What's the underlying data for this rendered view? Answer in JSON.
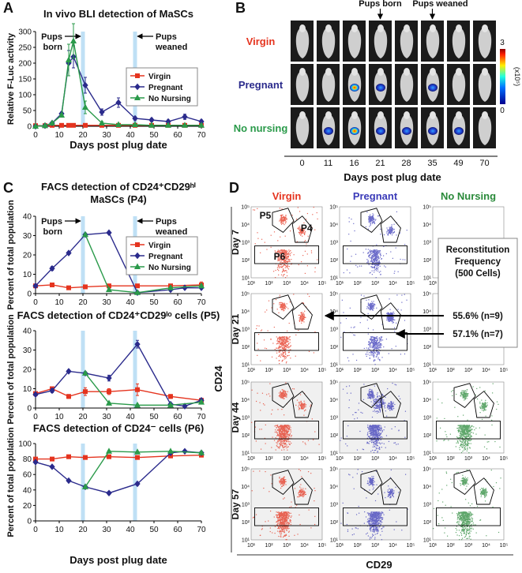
{
  "panel_labels": [
    "A",
    "B",
    "C",
    "D"
  ],
  "chart_data": [
    {
      "type": "line",
      "title": "In vivo BLI detection of MaSCs",
      "xlabel": "Days post plug date",
      "ylabel": "Relative F-Luc activity",
      "xlim": [
        0,
        70
      ],
      "xticks": [
        0,
        10,
        20,
        30,
        40,
        50,
        60,
        70
      ],
      "ylim": [
        0,
        300
      ],
      "yticks": [
        0,
        50,
        100,
        150,
        200,
        250,
        300
      ],
      "highlights": [
        20,
        42
      ],
      "annotations": [
        [
          "Pups",
          "born"
        ],
        [
          "Pups",
          "weaned"
        ]
      ],
      "legend": "right",
      "series": [
        {
          "name": "Virgin",
          "color": "#e5341f",
          "marker": "square",
          "x": [
            0,
            4,
            7,
            11,
            14,
            16,
            21,
            28,
            35,
            42,
            49,
            56,
            63,
            70
          ],
          "values": [
            2,
            2,
            3,
            3,
            3,
            3,
            3,
            3,
            3,
            3,
            3,
            3,
            3,
            3
          ]
        },
        {
          "name": "Pregnant",
          "color": "#2b2b8c",
          "marker": "diamond",
          "x": [
            0,
            4,
            7,
            11,
            14,
            16,
            21,
            28,
            35,
            42,
            49,
            56,
            63,
            70
          ],
          "values": [
            0,
            2,
            10,
            40,
            200,
            220,
            130,
            45,
            75,
            25,
            20,
            15,
            30,
            15
          ],
          "errors": [
            0,
            1,
            3,
            5,
            40,
            35,
            25,
            10,
            15,
            5,
            5,
            5,
            8,
            5
          ]
        },
        {
          "name": "No Nursing",
          "color": "#2a9a4a",
          "marker": "triangle",
          "x": [
            0,
            4,
            7,
            11,
            14,
            16,
            21,
            28,
            35,
            42,
            49,
            56,
            63,
            70
          ],
          "values": [
            0,
            2,
            10,
            35,
            210,
            270,
            60,
            10,
            5,
            5,
            3,
            3,
            3,
            3
          ],
          "errors": [
            0,
            1,
            3,
            5,
            50,
            55,
            20,
            5,
            3,
            2,
            2,
            2,
            2,
            2
          ]
        }
      ]
    },
    {
      "type": "line",
      "title": [
        "FACS detection of CD24⁺CD29ʰⁱ",
        "MaSCs (P4)"
      ],
      "ylabel": "Percent of total population",
      "xlim": [
        0,
        70
      ],
      "xticks": [
        0,
        10,
        20,
        30,
        40,
        50,
        60,
        70
      ],
      "ylim": [
        0,
        40
      ],
      "yticks": [
        0,
        10,
        20,
        30,
        40
      ],
      "highlights": [
        20,
        42
      ],
      "annotations": [
        [
          "Pups",
          "born"
        ],
        [
          "Pups",
          "weaned"
        ]
      ],
      "legend": "right",
      "series": [
        {
          "name": "Virgin",
          "color": "#e5341f",
          "marker": "square",
          "x": [
            0,
            7,
            14,
            21,
            31,
            43,
            57,
            70
          ],
          "values": [
            4,
            4.5,
            3,
            3.5,
            4,
            4,
            4,
            4.5
          ],
          "errors": [
            0.5,
            0.5,
            0.5,
            0.5,
            0.5,
            0.5,
            0.8,
            1.5
          ]
        },
        {
          "name": "Pregnant",
          "color": "#2b2b8c",
          "marker": "diamond",
          "x": [
            0,
            7,
            14,
            21,
            31,
            43,
            57,
            63,
            70
          ],
          "values": [
            4,
            13,
            21,
            30.5,
            31.5,
            0.5,
            2,
            3,
            3
          ],
          "errors": [
            0.5,
            1,
            0.7,
            0.8,
            0.5,
            0.5,
            0.5,
            0.5,
            0.5
          ]
        },
        {
          "name": "No Nursing",
          "color": "#2a9a4a",
          "marker": "triangle",
          "x": [
            21,
            31,
            43,
            57,
            70
          ],
          "values": [
            30.5,
            2,
            0.5,
            3,
            4
          ],
          "errors": [
            0.5,
            0.5,
            0.3,
            0.5,
            0.5
          ]
        }
      ]
    },
    {
      "type": "line",
      "title": "FACS detection of CD24⁺CD29ˡᵒ cells (P5)",
      "ylabel": "Percent of total population",
      "xlim": [
        0,
        70
      ],
      "xticks": [
        0,
        10,
        20,
        30,
        40,
        50,
        60,
        70
      ],
      "ylim": [
        0,
        40
      ],
      "yticks": [
        0,
        10,
        20,
        30,
        40
      ],
      "highlights": [
        20,
        42
      ],
      "series": [
        {
          "color": "#e5341f",
          "marker": "square",
          "x": [
            0,
            7,
            14,
            21,
            31,
            43,
            57,
            70
          ],
          "values": [
            7.5,
            10,
            6,
            8.5,
            8.5,
            9.5,
            6,
            4
          ],
          "errors": [
            0.5,
            1,
            1,
            2,
            1.5,
            3,
            1,
            1
          ]
        },
        {
          "color": "#2b2b8c",
          "marker": "diamond",
          "x": [
            0,
            7,
            14,
            21,
            31,
            43,
            57,
            63,
            70
          ],
          "values": [
            7,
            9,
            19,
            18,
            15.5,
            33,
            2,
            1,
            4
          ],
          "errors": [
            0.5,
            1,
            0.7,
            0.7,
            1.5,
            2,
            0.5,
            0.5,
            0.5
          ]
        },
        {
          "color": "#2a9a4a",
          "marker": "triangle",
          "x": [
            21,
            31,
            43,
            57,
            70
          ],
          "values": [
            18,
            2.5,
            1.5,
            1.5,
            3
          ],
          "errors": [
            0.7,
            0.5,
            0.5,
            0.5,
            0.5
          ]
        }
      ]
    },
    {
      "type": "line",
      "title": "FACS detection of CD24⁻ cells (P6)",
      "xlabel": "Days post plug date",
      "ylabel": "Percent of total population",
      "xlim": [
        0,
        70
      ],
      "xticks": [
        0,
        10,
        20,
        30,
        40,
        50,
        60,
        70
      ],
      "ylim": [
        0,
        100
      ],
      "yticks": [
        0,
        20,
        40,
        60,
        80,
        100
      ],
      "highlights": [
        20,
        42
      ],
      "series": [
        {
          "color": "#e5341f",
          "marker": "square",
          "x": [
            0,
            7,
            14,
            21,
            31,
            43,
            57,
            70
          ],
          "values": [
            80,
            80,
            83,
            82,
            83,
            82,
            84,
            85
          ],
          "errors": [
            1,
            2,
            2,
            2,
            2,
            2,
            2,
            2
          ]
        },
        {
          "color": "#2b2b8c",
          "marker": "diamond",
          "x": [
            0,
            7,
            14,
            21,
            31,
            43,
            57,
            63,
            70
          ],
          "values": [
            76,
            70,
            52,
            44,
            36,
            48,
            88,
            90,
            88
          ],
          "errors": [
            1,
            1,
            1,
            1,
            2,
            2,
            2,
            1,
            1
          ]
        },
        {
          "color": "#2a9a4a",
          "marker": "triangle",
          "x": [
            21,
            31,
            43,
            57,
            70
          ],
          "values": [
            44,
            90,
            89,
            90,
            88
          ],
          "errors": [
            1,
            1,
            1,
            1,
            1
          ]
        }
      ]
    }
  ],
  "panel_b": {
    "annotations": [
      "Pups born",
      "Pups weaned"
    ],
    "rows": [
      "Virgin",
      "Pregnant",
      "No nursing"
    ],
    "columns": [
      "0",
      "11",
      "16",
      "21",
      "28",
      "35",
      "49",
      "70"
    ],
    "xlabel": "Days post plug date",
    "colorbar": {
      "min": 0,
      "max": 3,
      "unit": "(x10⁵)"
    }
  },
  "panel_d": {
    "columns": [
      "Virgin",
      "Pregnant",
      "No Nursing"
    ],
    "rows": [
      "Day 7",
      "Day 21",
      "Day 44",
      "Day 57"
    ],
    "gates": [
      "P5",
      "P4",
      "P6"
    ],
    "ylabel": "CD24",
    "xlabel": "CD29",
    "log": true,
    "lim": [
      10,
      100000
    ],
    "ticks": [
      {
        "value": 10,
        "label": "10¹"
      },
      {
        "value": 100,
        "label": "10²"
      },
      {
        "value": 1000,
        "label": "10³"
      },
      {
        "value": 10000,
        "label": "10⁴"
      },
      {
        "value": 100000,
        "label": "10⁵"
      }
    ],
    "callout": {
      "title": [
        "Reconstitution",
        "Frequency",
        "(500 Cells)"
      ],
      "values": [
        "55.6% (n=9)",
        "57.1% (n=7)"
      ]
    }
  }
}
